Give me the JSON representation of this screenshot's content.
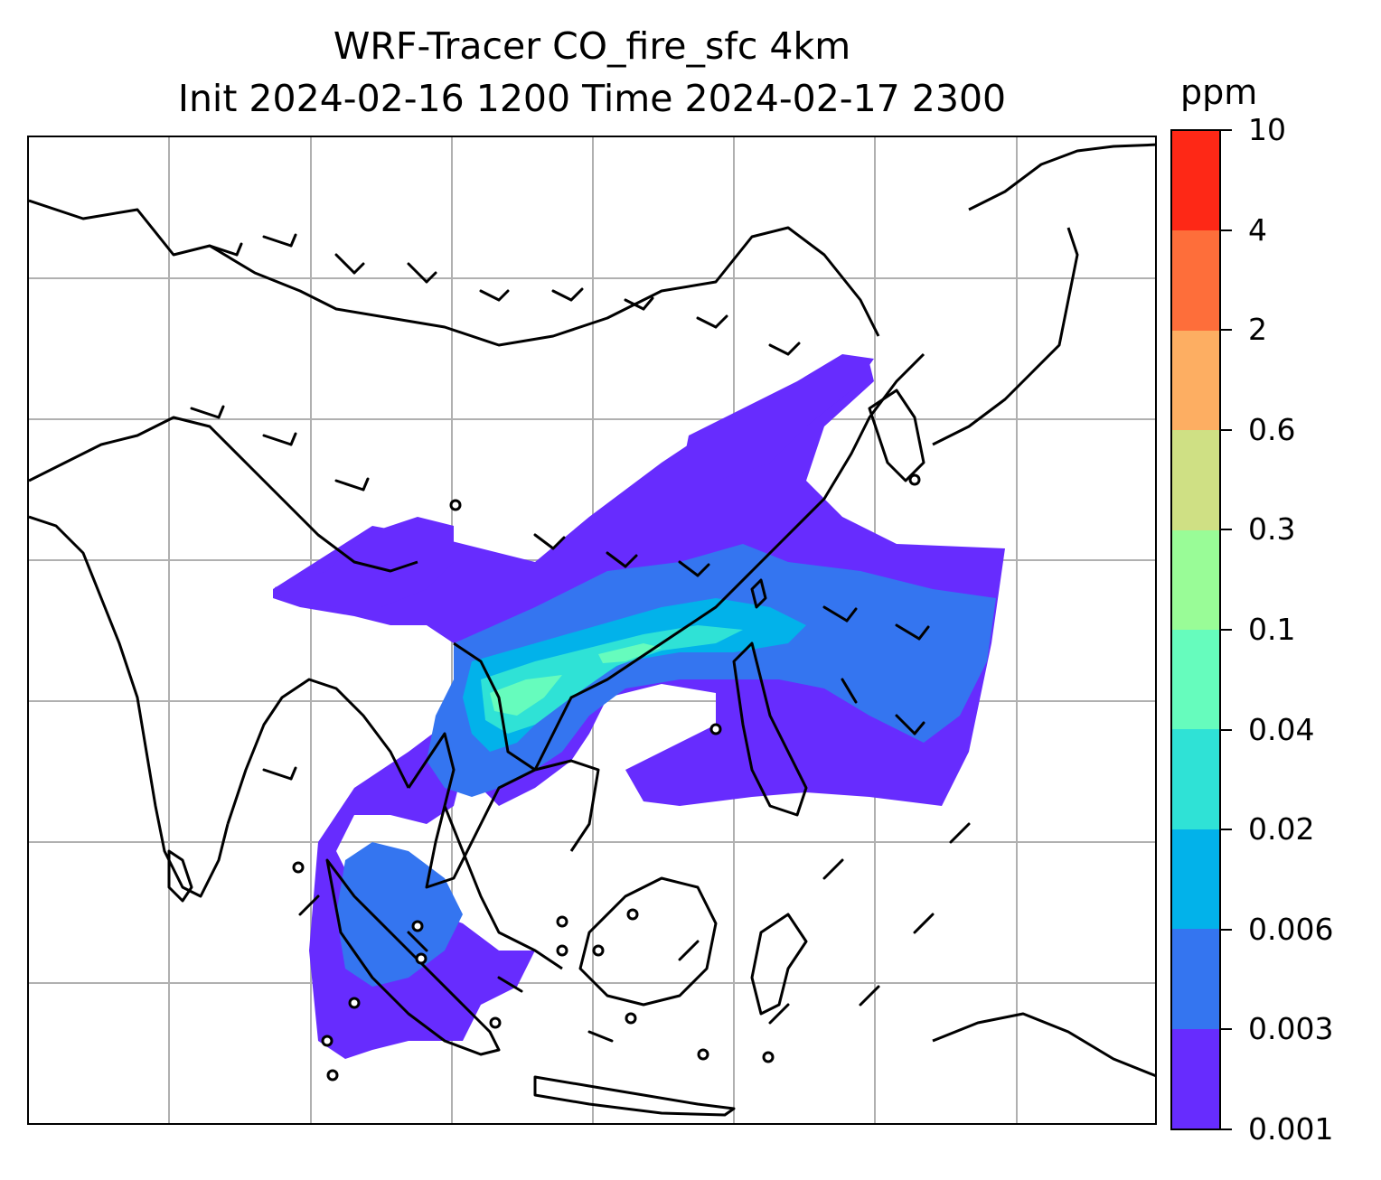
{
  "title_line1": "WRF-Tracer CO_fire_sfc 4km",
  "title_line2": "Init 2024-02-16 1200 Time 2024-02-17 2300",
  "colorbar": {
    "unit": "ppm",
    "tick_labels": [
      "10",
      "4",
      "2",
      "0.6",
      "0.3",
      "0.1",
      "0.04",
      "0.02",
      "0.006",
      "0.003",
      "0.001"
    ],
    "colors_top_to_bottom": [
      "#fe2816",
      "#fe6e3a",
      "#fdae62",
      "#cfe084",
      "#99fc97",
      "#66fcbd",
      "#2fe2d6",
      "#02b2ea",
      "#3475f0",
      "#672cfe"
    ]
  },
  "map": {
    "field": "CO_fire_sfc",
    "gridlines": "on",
    "gridline_color": "#b0b0b0",
    "coastline_color": "#000000",
    "wind_barbs": "on"
  }
}
